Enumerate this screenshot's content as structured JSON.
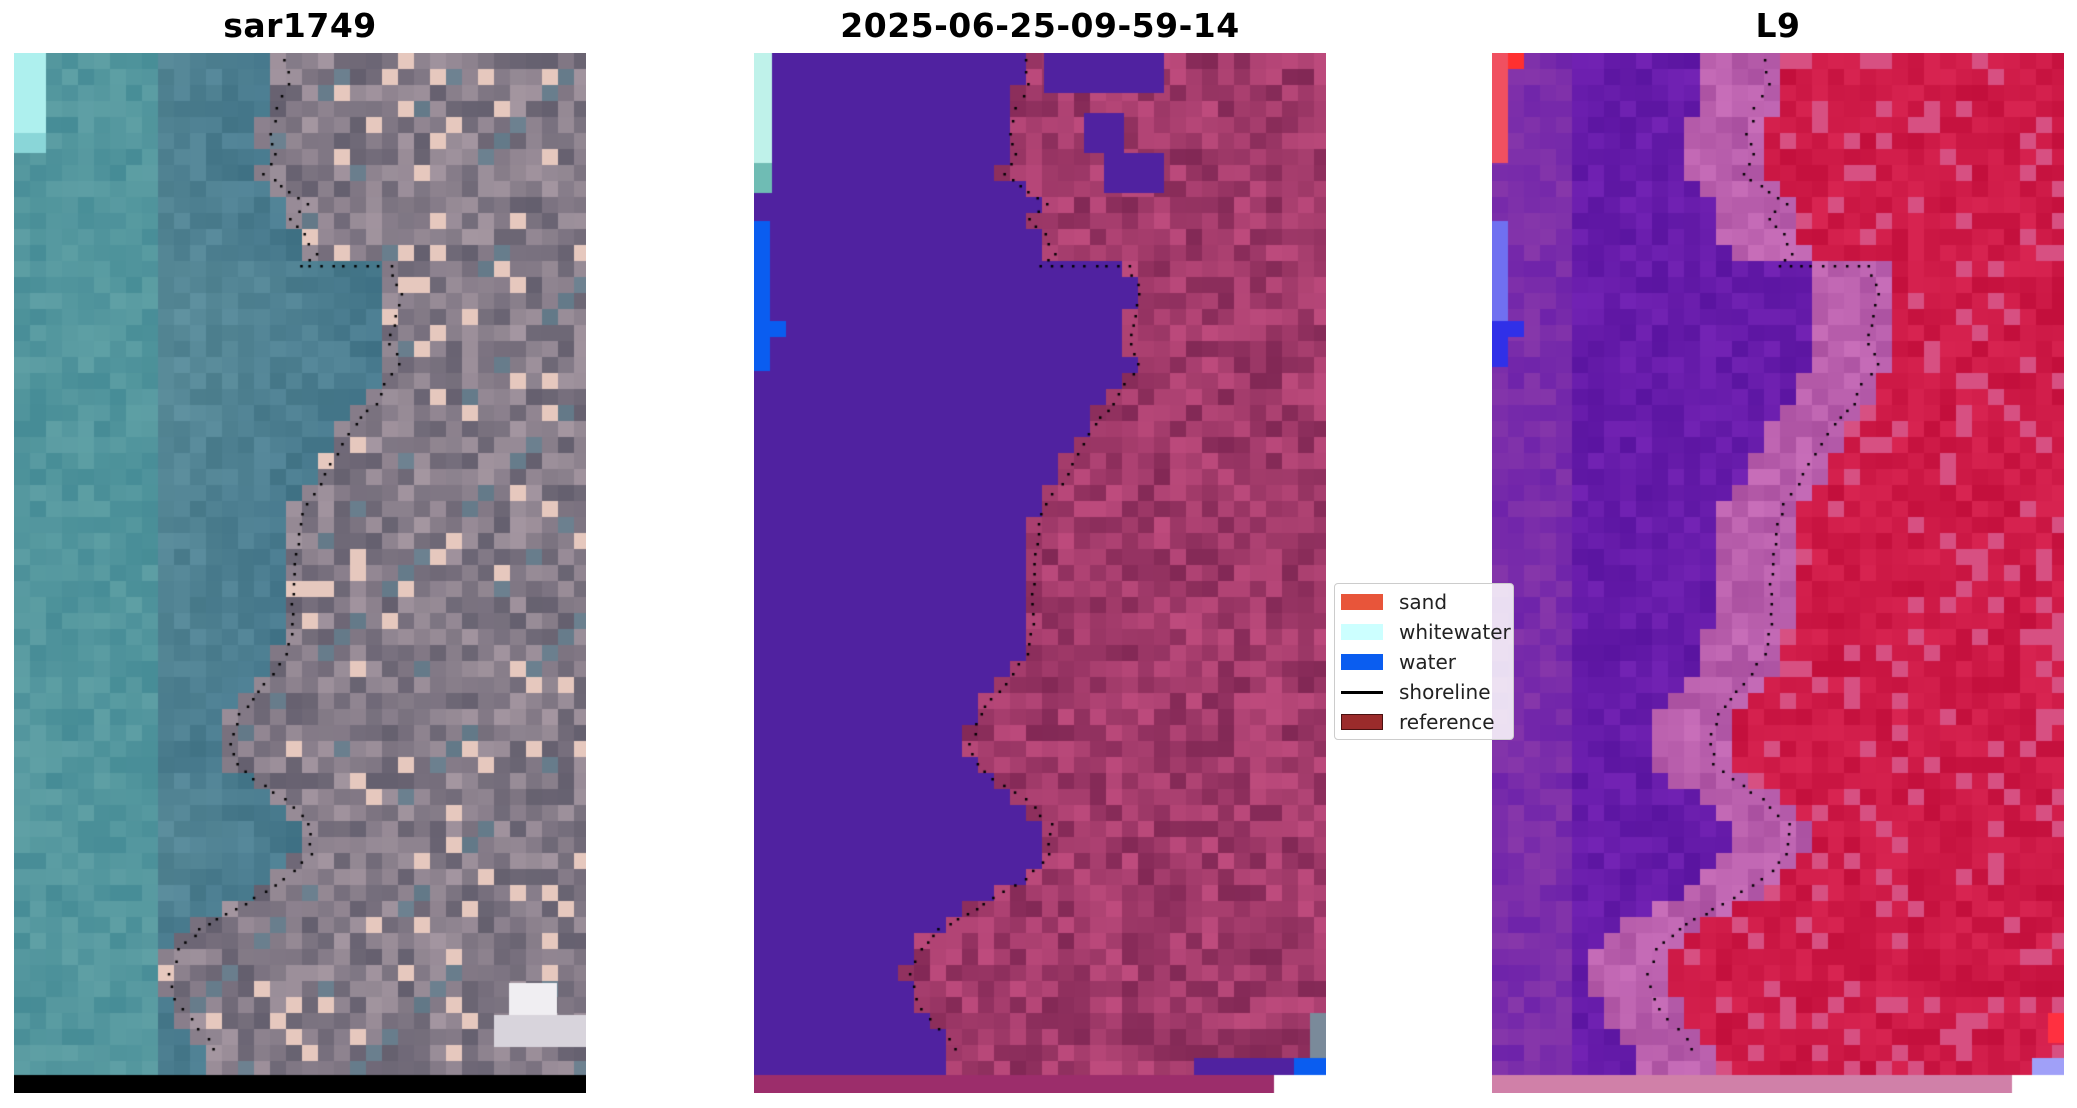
{
  "panels": [
    {
      "title": "sar1749",
      "content": "true-color satellite image with shoreline"
    },
    {
      "title": "2025-06-25-09-59-14",
      "content": "classified image overlay"
    },
    {
      "title": "L9",
      "content": "water index image"
    }
  ],
  "legend": {
    "items": [
      {
        "label": "sand",
        "color": "#e8553a",
        "kind": "patch"
      },
      {
        "label": "whitewater",
        "color": "#ccffff",
        "kind": "patch"
      },
      {
        "label": "water",
        "color": "#0a5df0",
        "kind": "patch"
      },
      {
        "label": "shoreline",
        "color": "#000000",
        "kind": "line"
      },
      {
        "label": "reference",
        "color": "#9b2b2b",
        "kind": "patch"
      }
    ]
  },
  "colors": {
    "shoreline": "#000000",
    "classified_water": "#5022a0",
    "index_water": "#5a0aa6",
    "index_land": "#c8113e"
  }
}
